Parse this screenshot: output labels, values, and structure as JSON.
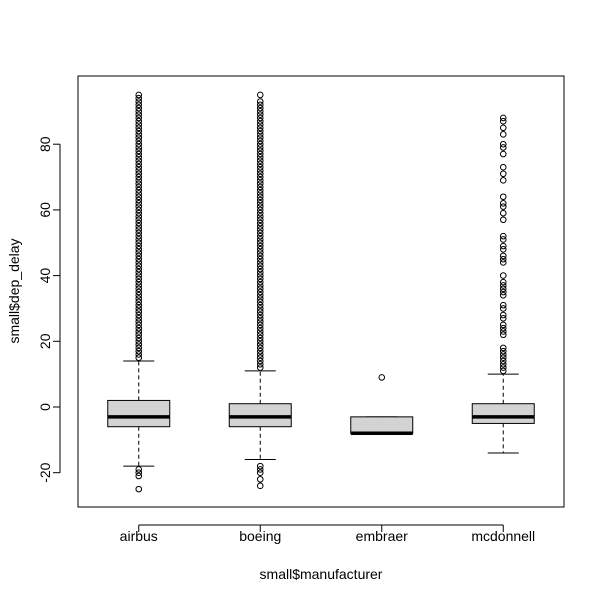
{
  "chart_data": {
    "type": "boxplot",
    "title": "",
    "xlabel": "small$manufacturer",
    "ylabel": "small$dep_delay",
    "categories": [
      "airbus",
      "boeing",
      "embraer",
      "mcdonnell"
    ],
    "ylim": [
      -30,
      98
    ],
    "yticks": [
      -20,
      0,
      20,
      40,
      60,
      80
    ],
    "ytick_labels": [
      "-20",
      "0",
      "20",
      "40",
      "60",
      "80"
    ],
    "grid": false,
    "legend": "none",
    "box_fill": "#d3d3d3",
    "median_color": "#000000",
    "boxes": [
      {
        "name": "airbus",
        "whisker_low": -18,
        "q1": -6,
        "median": -3,
        "q3": 2,
        "whisker_high": 14,
        "outliers": [
          -25,
          -21,
          -20,
          -19,
          15,
          16,
          17,
          18,
          19,
          20,
          21,
          22,
          23,
          24,
          25,
          26,
          27,
          28,
          29,
          30,
          31,
          32,
          33,
          34,
          35,
          36,
          37,
          38,
          39,
          40,
          41,
          42,
          43,
          44,
          45,
          46,
          47,
          48,
          49,
          50,
          51,
          52,
          53,
          54,
          55,
          56,
          57,
          58,
          59,
          60,
          61,
          62,
          63,
          64,
          65,
          66,
          67,
          68,
          69,
          70,
          71,
          72,
          73,
          74,
          75,
          76,
          77,
          78,
          79,
          80,
          81,
          82,
          83,
          84,
          85,
          86,
          87,
          88,
          89,
          90,
          91,
          92,
          93,
          94,
          95
        ]
      },
      {
        "name": "boeing",
        "whisker_low": -16,
        "q1": -6,
        "median": -3,
        "q3": 1,
        "whisker_high": 11,
        "outliers": [
          -24,
          -22,
          -20,
          -19,
          -18,
          12,
          13,
          14,
          15,
          16,
          17,
          18,
          19,
          20,
          21,
          22,
          23,
          24,
          25,
          26,
          27,
          28,
          29,
          30,
          31,
          32,
          33,
          34,
          35,
          36,
          37,
          38,
          39,
          40,
          41,
          42,
          43,
          44,
          45,
          46,
          47,
          48,
          49,
          50,
          51,
          52,
          53,
          54,
          55,
          56,
          57,
          58,
          59,
          60,
          61,
          62,
          63,
          64,
          65,
          66,
          67,
          68,
          69,
          70,
          71,
          72,
          73,
          74,
          75,
          76,
          77,
          78,
          79,
          80,
          81,
          82,
          83,
          84,
          85,
          86,
          87,
          88,
          89,
          90,
          91,
          92,
          93,
          95
        ]
      },
      {
        "name": "embraer",
        "whisker_low": -8,
        "q1": -8,
        "median": -8,
        "q3": -3,
        "whisker_high": -3,
        "outliers": [
          9
        ]
      },
      {
        "name": "mcdonnell",
        "whisker_low": -14,
        "q1": -5,
        "median": -3,
        "q3": 1,
        "whisker_high": 10,
        "outliers": [
          11,
          12,
          13,
          14,
          15,
          16,
          17,
          18,
          22,
          23,
          24,
          25,
          27,
          28,
          30,
          31,
          34,
          35,
          36,
          37,
          38,
          40,
          44,
          45,
          46,
          48,
          49,
          51,
          52,
          57,
          59,
          61,
          62,
          64,
          69,
          71,
          73,
          77,
          79,
          80,
          83,
          85,
          87,
          88
        ]
      }
    ]
  }
}
